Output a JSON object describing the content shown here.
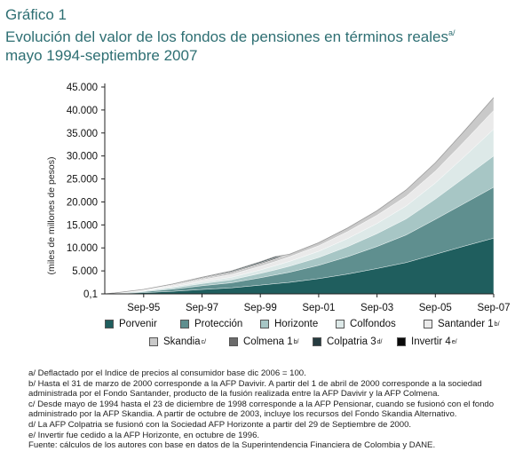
{
  "heading": {
    "kicker": "Gráfico 1",
    "title": "Evolución del valor de los fondos de pensiones en términos reales",
    "title_note": "a/",
    "subtitle": "mayo 1994-septiembre 2007"
  },
  "chart_data": {
    "type": "area",
    "title": "Evolución del valor de los fondos de pensiones en términos reales",
    "subtitle": "mayo 1994-septiembre 2007",
    "ylabel": "(miles de millones de pesos)",
    "xlabel": "",
    "ylim": [
      0,
      45000
    ],
    "y_tick_labels": [
      "0,1",
      "5.000",
      "10.000",
      "15.000",
      "20.000",
      "25.000",
      "30.000",
      "35.000",
      "40.000",
      "45.000"
    ],
    "x_tick_labels": [
      "Sep-95",
      "Sep-97",
      "Sep-99",
      "Sep-01",
      "Sep-03",
      "Sep-05",
      "Sep-07"
    ],
    "legend_position": "bottom",
    "grid": false,
    "x": [
      "May-94",
      "Sep-94",
      "Sep-95",
      "Sep-96",
      "Sep-97",
      "Sep-98",
      "Sep-99",
      "Mar-00",
      "Sep-00",
      "Sep-01",
      "Sep-02",
      "Sep-03",
      "Sep-04",
      "Sep-05",
      "Sep-06",
      "Sep-07"
    ],
    "series": [
      {
        "name": "Porvenir",
        "color": "#1f5e5e",
        "values": [
          0,
          50,
          250,
          550,
          950,
          1300,
          1900,
          2200,
          2500,
          3300,
          4300,
          5500,
          6800,
          8600,
          10400,
          12100
        ]
      },
      {
        "name": "Protección",
        "color": "#5f8f8f",
        "values": [
          0,
          40,
          200,
          450,
          800,
          1100,
          1600,
          1900,
          2200,
          2900,
          3800,
          4800,
          6000,
          7600,
          9300,
          11100
        ]
      },
      {
        "name": "Horizonte",
        "color": "#a7c6c5",
        "values": [
          0,
          25,
          130,
          280,
          480,
          650,
          950,
          1100,
          1300,
          1700,
          2200,
          2800,
          3500,
          4400,
          5600,
          6800
        ]
      },
      {
        "name": "Colfondos",
        "color": "#dde9e8",
        "values": [
          0,
          20,
          100,
          220,
          380,
          550,
          750,
          900,
          1050,
          1350,
          1750,
          2200,
          2800,
          3500,
          4600,
          5800
        ]
      },
      {
        "name": "Santander 1",
        "name_note": "b/",
        "color": "#eaeaea",
        "values": [
          0,
          25,
          120,
          270,
          440,
          600,
          800,
          900,
          1000,
          1200,
          1500,
          1800,
          2100,
          2600,
          3300,
          4100
        ]
      },
      {
        "name": "Skandia",
        "name_note": "c/",
        "color": "#c9c9c9",
        "values": [
          0,
          15,
          70,
          160,
          270,
          370,
          480,
          520,
          560,
          680,
          820,
          1000,
          1400,
          1800,
          2300,
          2800
        ]
      },
      {
        "name": "Colmena 1",
        "name_note": "b/",
        "color": "#6b6b6b",
        "values": [
          0,
          10,
          40,
          90,
          150,
          200,
          250,
          280,
          0,
          0,
          0,
          0,
          0,
          0,
          0,
          0
        ]
      },
      {
        "name": "Colpatria 3",
        "name_note": "d/",
        "color": "#263c40",
        "values": [
          0,
          10,
          40,
          90,
          150,
          200,
          250,
          280,
          0,
          0,
          0,
          0,
          0,
          0,
          0,
          0
        ]
      },
      {
        "name": "Invertir 4",
        "name_note": "e/",
        "color": "#0a0a0a",
        "values": [
          0,
          5,
          20,
          40,
          0,
          0,
          0,
          0,
          0,
          0,
          0,
          0,
          0,
          0,
          0,
          0
        ]
      }
    ]
  },
  "notes": [
    "a/ Deflactado por el Indice de precios al consumidor base dic 2006 = 100.",
    "b/ Hasta el 31 de marzo de 2000 corresponde a la AFP Davivir. A partir del 1 de abril de 2000 corresponde a la sociedad administrada por el Fondo Santander, producto de la fusión realizada entre la AFP Davivir y la AFP Colmena.",
    "c/ Desde mayo de 1994 hasta el 23 de diciembre de 1998 corresponde a la AFP Pensionar, cuando se fusionó con el fondo administrado por la AFP Skandia. A partir de octubre de 2003, incluye los recursos del Fondo Skandia Alternativo.",
    "d/ La AFP Colpatria se fusionó con la Sociedad AFP Horizonte a partir del 29 de Septiembre de 2000.",
    "e/ Invertir fue cedido a la AFP Horizonte, en octubre de 1996.",
    "Fuente: cálculos de los autores con base en datos de la Superintendencia Financiera de Colombia y DANE."
  ]
}
